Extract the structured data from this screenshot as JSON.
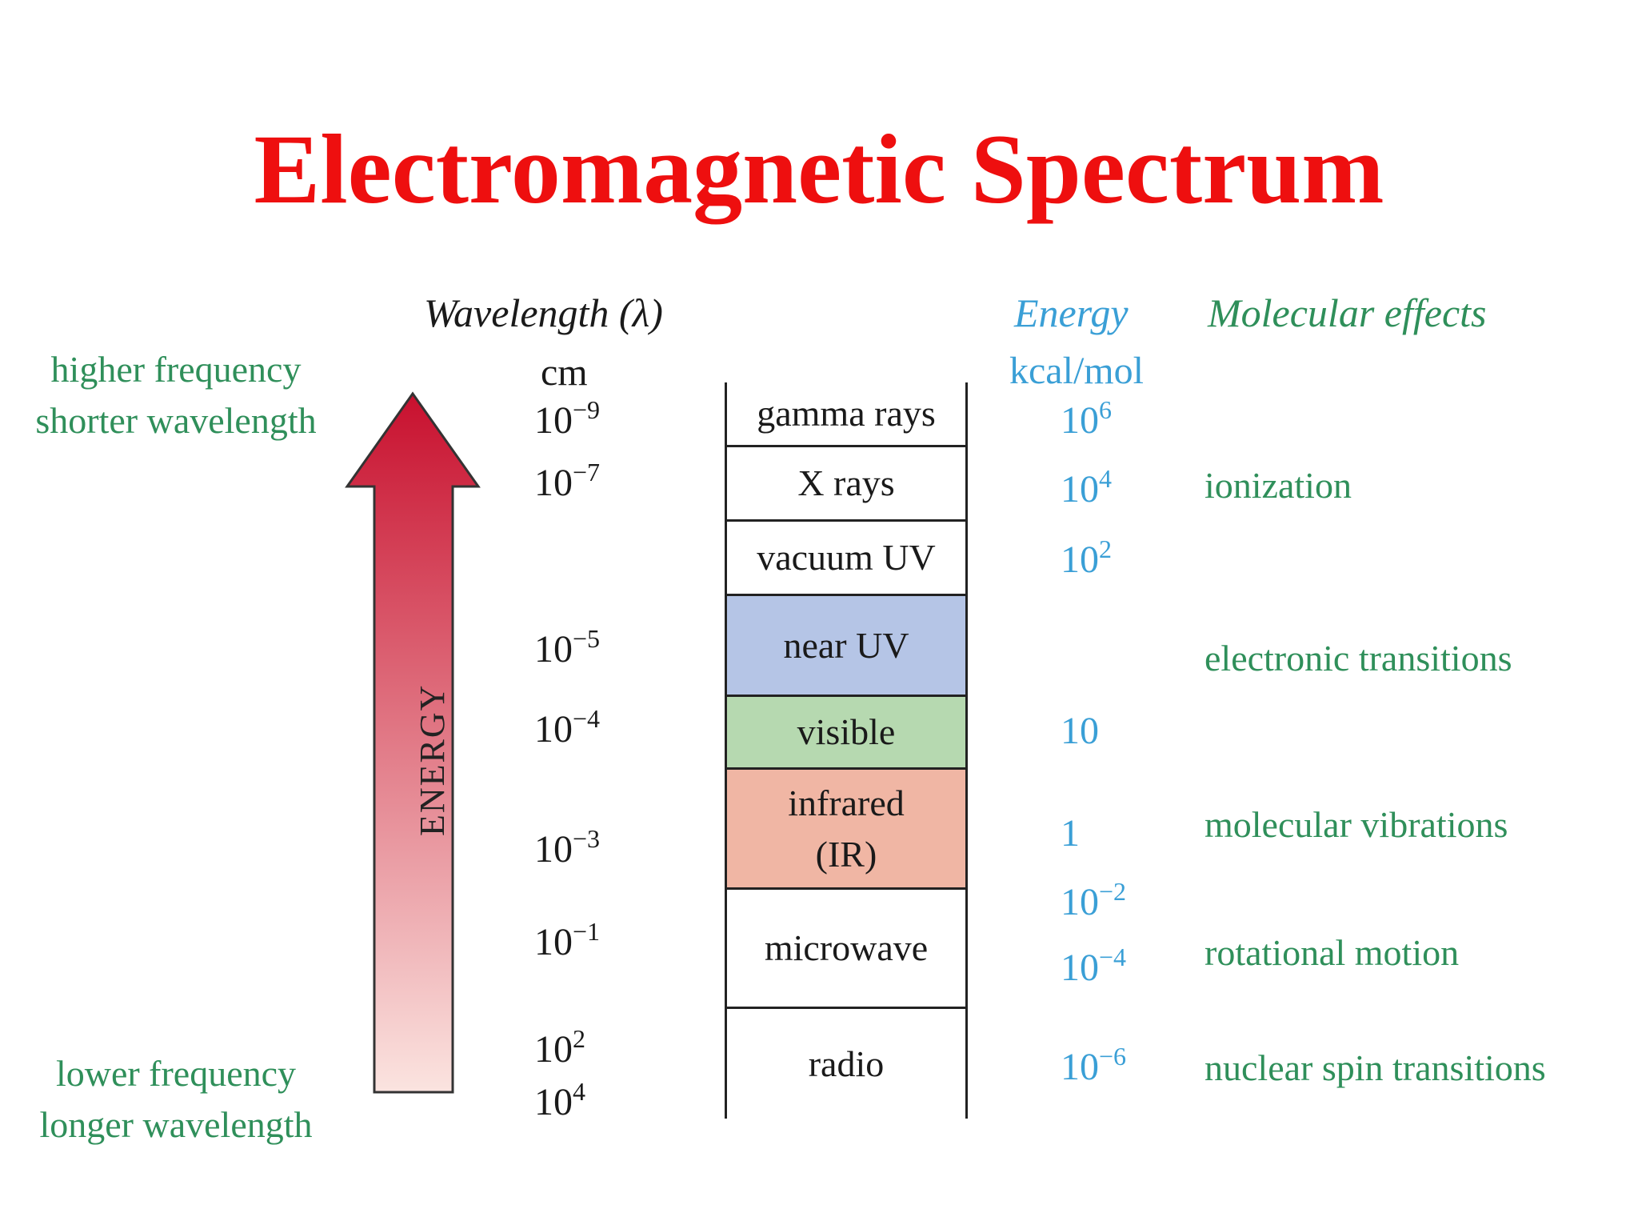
{
  "title": "Electromagnetic Spectrum",
  "headers": {
    "wavelength": "Wavelength (λ)",
    "wavelength_unit": "cm",
    "energy": "Energy",
    "energy_unit": "kcal/mol",
    "effects": "Molecular effects"
  },
  "arrow": {
    "label": "ENERGY",
    "top_label_1": "higher frequency",
    "top_label_2": "shorter wavelength",
    "bottom_label_1": "lower frequency",
    "bottom_label_2": "longer wavelength",
    "color_top": "#c8102e",
    "color_bottom": "#fbe4e0"
  },
  "bands": [
    {
      "label": "gamma rays",
      "color": "#ffffff"
    },
    {
      "label": "X rays",
      "color": "#ffffff"
    },
    {
      "label": "vacuum UV",
      "color": "#ffffff"
    },
    {
      "label": "near UV",
      "color": "#b5c5e6"
    },
    {
      "label": "visible",
      "color": "#b6d9b0"
    },
    {
      "label": "infrared\n(IR)",
      "color": "#f0b6a4"
    },
    {
      "label": "microwave",
      "color": "#ffffff"
    },
    {
      "label": "radio",
      "color": "#ffffff"
    }
  ],
  "wavelengths": [
    {
      "base": "10",
      "exp": "−9"
    },
    {
      "base": "10",
      "exp": "−7"
    },
    {
      "base": "10",
      "exp": "−5"
    },
    {
      "base": "10",
      "exp": "−4"
    },
    {
      "base": "10",
      "exp": "−3"
    },
    {
      "base": "10",
      "exp": "−1"
    },
    {
      "base": "10",
      "exp": "2"
    },
    {
      "base": "10",
      "exp": "4"
    }
  ],
  "energies": [
    {
      "base": "10",
      "exp": "6"
    },
    {
      "base": "10",
      "exp": "4"
    },
    {
      "base": "10",
      "exp": "2"
    },
    {
      "base": "10",
      "exp": ""
    },
    {
      "base": "1",
      "exp": ""
    },
    {
      "base": "10",
      "exp": "−2"
    },
    {
      "base": "10",
      "exp": "−4"
    },
    {
      "base": "10",
      "exp": "−6"
    }
  ],
  "effects": [
    "ionization",
    "electronic transitions",
    "molecular vibrations",
    "rotational motion",
    "nuclear spin transitions"
  ]
}
